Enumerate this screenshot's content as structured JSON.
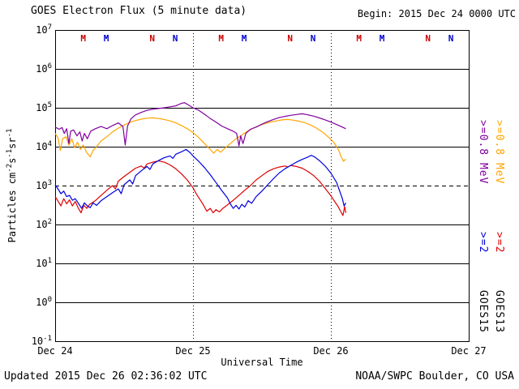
{
  "header": {
    "title": "GOES Electron Flux (5 minute data)",
    "begin_label": "Begin: 2015 Dec 24 0000 UTC"
  },
  "footer": {
    "updated": "Updated 2015 Dec 26 02:36:02 UTC",
    "credit": "NOAA/SWPC Boulder, CO USA"
  },
  "right_legend": {
    "columns": [
      {
        "satellite": "GOES15",
        "energy_high": ">=0.8 MeV",
        "energy_low": ">=2",
        "color_high": "#8000A0",
        "color_low": "#0000DD"
      },
      {
        "satellite": "GOES13",
        "energy_high": ">=0.8 MeV",
        "energy_low": ">=2",
        "color_high": "#FFA500",
        "color_low": "#DD0000"
      }
    ]
  },
  "chart_data": {
    "type": "line",
    "title": "GOES Electron Flux (5 minute data)",
    "begin": "Begin: 2015 Dec 24 0000 UTC",
    "xlabel": "Universal Time",
    "ylabel_parts": [
      {
        "t": "Particles  cm"
      },
      {
        "s": "-2"
      },
      {
        "t": "s"
      },
      {
        "s": "-1"
      },
      {
        "t": "sr"
      },
      {
        "s": "-1"
      }
    ],
    "y_tick_base": "10",
    "y_tick_exponents": [
      7,
      6,
      5,
      4,
      3,
      2,
      1,
      0,
      -1
    ],
    "ylim": [
      0.1,
      10000000
    ],
    "x_range_hours": [
      0,
      72
    ],
    "x_ticks": [
      {
        "label": "Dec 24",
        "hour": 0
      },
      {
        "label": "Dec 25",
        "hour": 24,
        "gridline": true
      },
      {
        "label": "Dec 26",
        "hour": 48,
        "gridline": true
      },
      {
        "label": "Dec 27",
        "hour": 72
      }
    ],
    "threshold": {
      "value": 1000,
      "style": "dashed"
    },
    "noon_midnight_markers": [
      {
        "hour": 5,
        "letter": "M",
        "color": "#CC0000"
      },
      {
        "hour": 9,
        "letter": "M",
        "color": "#0000CC"
      },
      {
        "hour": 17,
        "letter": "N",
        "color": "#CC0000"
      },
      {
        "hour": 21,
        "letter": "N",
        "color": "#0000CC"
      },
      {
        "hour": 29,
        "letter": "M",
        "color": "#CC0000"
      },
      {
        "hour": 33,
        "letter": "M",
        "color": "#0000CC"
      },
      {
        "hour": 41,
        "letter": "N",
        "color": "#CC0000"
      },
      {
        "hour": 45,
        "letter": "N",
        "color": "#0000CC"
      },
      {
        "hour": 53,
        "letter": "M",
        "color": "#CC0000"
      },
      {
        "hour": 57,
        "letter": "M",
        "color": "#0000CC"
      },
      {
        "hour": 65,
        "letter": "N",
        "color": "#CC0000"
      },
      {
        "hour": 69,
        "letter": "N",
        "color": "#0000CC"
      }
    ],
    "series": [
      {
        "name": "GOES13 >=0.8 MeV",
        "satellite": "GOES13",
        "energy": ">=0.8 MeV",
        "color": "#FFA500",
        "points": [
          [
            0,
            22000.0
          ],
          [
            0.5,
            17000.0
          ],
          [
            0.9,
            8000.0
          ],
          [
            1.3,
            16000.0
          ],
          [
            1.9,
            18000.0
          ],
          [
            2.4,
            11000.0
          ],
          [
            2.9,
            16000.0
          ],
          [
            3.4,
            9500.0
          ],
          [
            3.9,
            13000.0
          ],
          [
            4.4,
            8500.0
          ],
          [
            4.9,
            11000.0
          ],
          [
            5.5,
            7000.0
          ],
          [
            6.1,
            5500.0
          ],
          [
            6.6,
            8000.0
          ],
          [
            7.2,
            10000.0
          ],
          [
            8,
            14000.0
          ],
          [
            9,
            18000.0
          ],
          [
            10,
            24000.0
          ],
          [
            11,
            30000.0
          ],
          [
            12,
            36000.0
          ],
          [
            13,
            42000.0
          ],
          [
            14,
            47000.0
          ],
          [
            15,
            51000.0
          ],
          [
            16,
            54000.0
          ],
          [
            17,
            55000.0
          ],
          [
            18,
            53000.0
          ],
          [
            19,
            50000.0
          ],
          [
            20,
            46000.0
          ],
          [
            21,
            41000.0
          ],
          [
            22,
            35000.0
          ],
          [
            23,
            29000.0
          ],
          [
            24,
            23000.0
          ],
          [
            25,
            17000.0
          ],
          [
            26,
            12000.0
          ],
          [
            27,
            8500.0
          ],
          [
            27.6,
            6800.0
          ],
          [
            28.2,
            8500.0
          ],
          [
            28.8,
            7200.0
          ],
          [
            29.5,
            9000.0
          ],
          [
            30.5,
            12000.0
          ],
          [
            31.5,
            16000.0
          ],
          [
            32.5,
            20000.0
          ],
          [
            33.5,
            25000.0
          ],
          [
            34.5,
            30000.0
          ],
          [
            35.5,
            35000.0
          ],
          [
            36.5,
            39000.0
          ],
          [
            37.5,
            43000.0
          ],
          [
            38.5,
            46000.0
          ],
          [
            39.5,
            49000.0
          ],
          [
            40.5,
            50000.0
          ],
          [
            41.5,
            48000.0
          ],
          [
            42.5,
            45000.0
          ],
          [
            43.5,
            41000.0
          ],
          [
            44.5,
            36000.0
          ],
          [
            45.5,
            30000.0
          ],
          [
            46.5,
            24000.0
          ],
          [
            47.5,
            18000.0
          ],
          [
            48.5,
            13000.0
          ],
          [
            49.3,
            8500.0
          ],
          [
            49.8,
            5500.0
          ],
          [
            50.2,
            4200.0
          ],
          [
            50.6,
            4800.0
          ]
        ]
      },
      {
        "name": "GOES15 >=0.8 MeV",
        "satellite": "GOES15",
        "energy": ">=0.8 MeV",
        "color": "#8000A0",
        "points": [
          [
            0,
            32000.0
          ],
          [
            0.7,
            28000.0
          ],
          [
            1.2,
            31000.0
          ],
          [
            1.6,
            22000.0
          ],
          [
            2,
            29000.0
          ],
          [
            2.4,
            12000.0
          ],
          [
            2.7,
            25000.0
          ],
          [
            3.2,
            27000.0
          ],
          [
            3.8,
            19000.0
          ],
          [
            4.3,
            24000.0
          ],
          [
            4.7,
            14000.0
          ],
          [
            5.1,
            22000.0
          ],
          [
            5.6,
            16000.0
          ],
          [
            6.2,
            25000.0
          ],
          [
            7,
            29000.0
          ],
          [
            8,
            33000.0
          ],
          [
            9,
            29000.0
          ],
          [
            10,
            35000.0
          ],
          [
            11,
            41000.0
          ],
          [
            11.8,
            33000.0
          ],
          [
            12.2,
            11000.0
          ],
          [
            12.6,
            34000.0
          ],
          [
            13.2,
            52000.0
          ],
          [
            14,
            66000.0
          ],
          [
            15,
            76000.0
          ],
          [
            16,
            86000.0
          ],
          [
            17,
            92000.0
          ],
          [
            18,
            96000.0
          ],
          [
            19,
            100000.0
          ],
          [
            20,
            106000.0
          ],
          [
            21,
            112000.0
          ],
          [
            22,
            130000.0
          ],
          [
            22.5,
            135000.0
          ],
          [
            23.2,
            118000.0
          ],
          [
            24,
            100000.0
          ],
          [
            25,
            86000.0
          ],
          [
            26,
            68000.0
          ],
          [
            27,
            53000.0
          ],
          [
            28,
            43000.0
          ],
          [
            29,
            34000.0
          ],
          [
            30,
            29000.0
          ],
          [
            31,
            25000.0
          ],
          [
            31.6,
            22000.0
          ],
          [
            32,
            10500.0
          ],
          [
            32.3,
            19000.0
          ],
          [
            32.7,
            12000.0
          ],
          [
            33.2,
            22000.0
          ],
          [
            34,
            28000.0
          ],
          [
            35,
            32000.0
          ],
          [
            36,
            38000.0
          ],
          [
            37,
            44000.0
          ],
          [
            38,
            50000.0
          ],
          [
            39,
            56000.0
          ],
          [
            40,
            60000.0
          ],
          [
            41,
            64000.0
          ],
          [
            42,
            67000.0
          ],
          [
            43,
            70000.0
          ],
          [
            44,
            66000.0
          ],
          [
            45,
            61000.0
          ],
          [
            46,
            55000.0
          ],
          [
            47,
            49000.0
          ],
          [
            48,
            43000.0
          ],
          [
            49,
            37000.0
          ],
          [
            50,
            32000.0
          ],
          [
            50.6,
            29000.0
          ]
        ]
      },
      {
        "name": "GOES13 >=2 MeV",
        "satellite": "GOES13",
        "energy": ">=2 MeV",
        "color": "#DD0000",
        "points": [
          [
            0,
            520.0
          ],
          [
            0.5,
            400.0
          ],
          [
            1,
            300.0
          ],
          [
            1.5,
            460.0
          ],
          [
            2,
            340.0
          ],
          [
            2.5,
            430.0
          ],
          [
            3,
            300.0
          ],
          [
            3.5,
            390.0
          ],
          [
            4,
            270.0
          ],
          [
            4.5,
            200.0
          ],
          [
            5,
            310.0
          ],
          [
            5.5,
            260.0
          ],
          [
            6,
            330.0
          ],
          [
            7,
            410.0
          ],
          [
            8,
            560.0
          ],
          [
            9,
            760.0
          ],
          [
            10,
            1000.0
          ],
          [
            10.5,
            820.0
          ],
          [
            11,
            1300.0
          ],
          [
            12,
            1700.0
          ],
          [
            13,
            2200.0
          ],
          [
            14,
            2800.0
          ],
          [
            15,
            3200.0
          ],
          [
            15.5,
            2800.0
          ],
          [
            16,
            3600.0
          ],
          [
            17,
            4000.0
          ],
          [
            18,
            4300.0
          ],
          [
            19,
            4000.0
          ],
          [
            20,
            3400.0
          ],
          [
            21,
            2700.0
          ],
          [
            22,
            2000.0
          ],
          [
            23,
            1400.0
          ],
          [
            24,
            880.0
          ],
          [
            24.6,
            600.0
          ],
          [
            25.2,
            440.0
          ],
          [
            25.8,
            320.0
          ],
          [
            26.4,
            220.0
          ],
          [
            27,
            260.0
          ],
          [
            27.5,
            200.0
          ],
          [
            28,
            240.0
          ],
          [
            28.6,
            210.0
          ],
          [
            29.2,
            260.0
          ],
          [
            30,
            320.0
          ],
          [
            31,
            420.0
          ],
          [
            32,
            560.0
          ],
          [
            33,
            760.0
          ],
          [
            34,
            1000.0
          ],
          [
            35,
            1400.0
          ],
          [
            36,
            1800.0
          ],
          [
            37,
            2300.0
          ],
          [
            38,
            2700.0
          ],
          [
            39,
            3000.0
          ],
          [
            40,
            3200.0
          ],
          [
            40.5,
            3000.0
          ],
          [
            41,
            3300.0
          ],
          [
            42,
            3100.0
          ],
          [
            43,
            2800.0
          ],
          [
            44,
            2300.0
          ],
          [
            45,
            1800.0
          ],
          [
            46,
            1300.0
          ],
          [
            47,
            850.0
          ],
          [
            48,
            550.0
          ],
          [
            48.6,
            400.0
          ],
          [
            49.2,
            300.0
          ],
          [
            49.7,
            220.0
          ],
          [
            50.1,
            170.0
          ],
          [
            50.4,
            290.0
          ],
          [
            50.6,
            200.0
          ]
        ]
      },
      {
        "name": "GOES15 >=2 MeV",
        "satellite": "GOES15",
        "energy": ">=2 MeV",
        "color": "#0000DD",
        "points": [
          [
            0,
            1050.0
          ],
          [
            0.5,
            820.0
          ],
          [
            1,
            620.0
          ],
          [
            1.5,
            720.0
          ],
          [
            2,
            520.0
          ],
          [
            2.5,
            560.0
          ],
          [
            3,
            420.0
          ],
          [
            3.5,
            460.0
          ],
          [
            4,
            360.0
          ],
          [
            4.6,
            260.0
          ],
          [
            5.1,
            360.0
          ],
          [
            5.6,
            300.0
          ],
          [
            6.1,
            270.0
          ],
          [
            6.6,
            360.0
          ],
          [
            7.2,
            310.0
          ],
          [
            8,
            410.0
          ],
          [
            9,
            520.0
          ],
          [
            10,
            660.0
          ],
          [
            11,
            820.0
          ],
          [
            11.5,
            620.0
          ],
          [
            12,
            1050.0
          ],
          [
            13,
            1400.0
          ],
          [
            13.5,
            1100.0
          ],
          [
            14,
            1800.0
          ],
          [
            15,
            2400.0
          ],
          [
            16,
            3100.0
          ],
          [
            16.5,
            2600.0
          ],
          [
            17,
            3600.0
          ],
          [
            18,
            4400.0
          ],
          [
            19,
            5200.0
          ],
          [
            20,
            5800.0
          ],
          [
            20.5,
            5000.0
          ],
          [
            21,
            6400.0
          ],
          [
            22,
            7400.0
          ],
          [
            22.8,
            8500.0
          ],
          [
            23.5,
            7000.0
          ],
          [
            24,
            5800.0
          ],
          [
            25,
            4200.0
          ],
          [
            26,
            2900.0
          ],
          [
            27,
            1900.0
          ],
          [
            28,
            1200.0
          ],
          [
            29,
            750.0
          ],
          [
            30,
            480.0
          ],
          [
            30.5,
            340.0
          ],
          [
            31,
            260.0
          ],
          [
            31.5,
            310.0
          ],
          [
            32,
            250.0
          ],
          [
            32.5,
            330.0
          ],
          [
            33,
            280.0
          ],
          [
            33.6,
            410.0
          ],
          [
            34.2,
            350.0
          ],
          [
            35,
            520.0
          ],
          [
            36,
            720.0
          ],
          [
            37,
            1050.0
          ],
          [
            38,
            1500.0
          ],
          [
            39,
            2100.0
          ],
          [
            40,
            2700.0
          ],
          [
            41,
            3300.0
          ],
          [
            42,
            4000.0
          ],
          [
            43,
            4700.0
          ],
          [
            44,
            5400.0
          ],
          [
            44.6,
            6000.0
          ],
          [
            45.2,
            5400.0
          ],
          [
            46,
            4400.0
          ],
          [
            47,
            3200.0
          ],
          [
            48,
            2100.0
          ],
          [
            49,
            1200.0
          ],
          [
            49.5,
            750.0
          ],
          [
            50,
            460.0
          ],
          [
            50.3,
            300.0
          ],
          [
            50.6,
            360.0
          ]
        ]
      }
    ]
  }
}
